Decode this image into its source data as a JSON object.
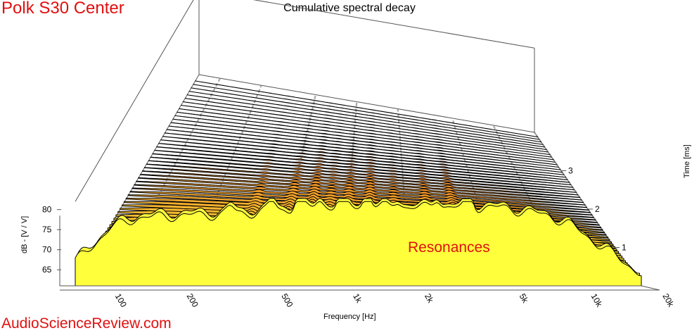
{
  "header": {
    "brand": "Polk S30 Center",
    "watermark": "AudioScienceReview.com"
  },
  "chart_data": {
    "type": "waterfall",
    "title": "Cumulative spectral decay",
    "xlabel": "Frequency [Hz]",
    "ylabel": "dB - [V / V]",
    "zlabel": "Time [ms]",
    "x_scale": "log",
    "x_range": [
      70,
      20000
    ],
    "x_ticks": [
      {
        "value": 100,
        "label": "100"
      },
      {
        "value": 200,
        "label": "200"
      },
      {
        "value": 500,
        "label": "500"
      },
      {
        "value": 1000,
        "label": "1k"
      },
      {
        "value": 2000,
        "label": "2k"
      },
      {
        "value": 5000,
        "label": "5k"
      },
      {
        "value": 10000,
        "label": "10k"
      },
      {
        "value": 20000,
        "label": "20k"
      }
    ],
    "y_range": [
      61,
      82
    ],
    "y_ticks": [
      {
        "value": 65,
        "label": "65"
      },
      {
        "value": 70,
        "label": "70"
      },
      {
        "value": 75,
        "label": "75"
      },
      {
        "value": 80,
        "label": "80"
      }
    ],
    "z_range": [
      0,
      4
    ],
    "z_ticks": [
      {
        "value": 1,
        "label": "1"
      },
      {
        "value": 2,
        "label": "2"
      },
      {
        "value": 3,
        "label": "3"
      }
    ],
    "slices": 60,
    "colormap": {
      "front": "#ffff3c",
      "back": "#e8401a"
    },
    "annotation": {
      "text": "Resonances",
      "color": "#e01010"
    },
    "resonance_frequencies": [
      330,
      500,
      650,
      800,
      1000,
      1300,
      1750,
      2600,
      3600
    ],
    "envelope": [
      {
        "f": 70,
        "db": 67
      },
      {
        "f": 100,
        "db": 75.5
      },
      {
        "f": 130,
        "db": 78
      },
      {
        "f": 200,
        "db": 78.5
      },
      {
        "f": 350,
        "db": 79
      },
      {
        "f": 600,
        "db": 80
      },
      {
        "f": 1000,
        "db": 81
      },
      {
        "f": 2000,
        "db": 80.5
      },
      {
        "f": 5000,
        "db": 80.5
      },
      {
        "f": 8000,
        "db": 78.5
      },
      {
        "f": 10000,
        "db": 76
      },
      {
        "f": 20000,
        "db": 64
      }
    ]
  }
}
